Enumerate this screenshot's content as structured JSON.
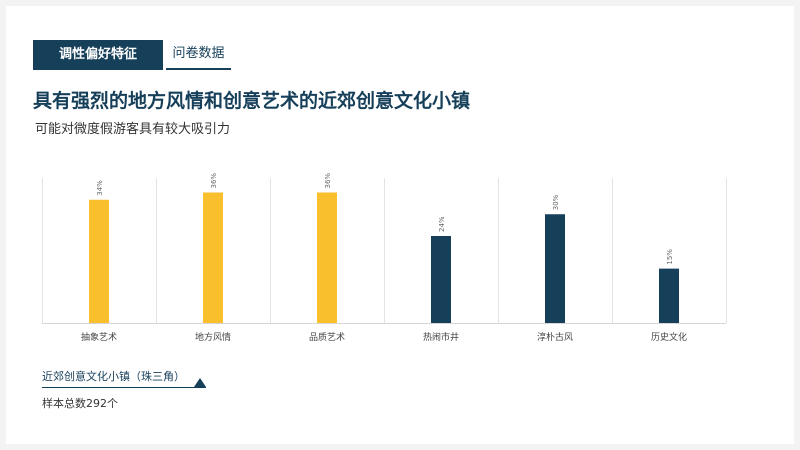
{
  "header": {
    "tag_primary": "调性偏好特征",
    "tag_secondary": "问卷数据",
    "headline": "具有强烈的地方风情和创意艺术的近郊创意文化小镇",
    "subheadline": "可能对微度假游客具有较大吸引力"
  },
  "legend": {
    "label": "近郊创意文化小镇（珠三角）",
    "sample": "样本总数292个"
  },
  "colors": {
    "yellow": "#f9bf2c",
    "navy": "#163f5a",
    "gridline": "#e3e3e3",
    "label": "#666666"
  },
  "chart_data": {
    "type": "bar",
    "title": "具有强烈的地方风情和创意艺术的近郊创意文化小镇",
    "subtitle": "可能对微度假游客具有较大吸引力",
    "categories": [
      "抽象艺术",
      "地方风情",
      "品质艺术",
      "热闹市井",
      "淳朴古风",
      "历史文化"
    ],
    "values": [
      34,
      36,
      36,
      24,
      30,
      15
    ],
    "data_labels": [
      "34%",
      "36%",
      "36%",
      "24%",
      "30%",
      "15%"
    ],
    "bar_colors": [
      "#f9bf2c",
      "#f9bf2c",
      "#f9bf2c",
      "#163f5a",
      "#163f5a",
      "#163f5a"
    ],
    "ylim": [
      0,
      40
    ],
    "unit": "%",
    "grid": "vertical separators",
    "legend_position": "bottom-left"
  }
}
